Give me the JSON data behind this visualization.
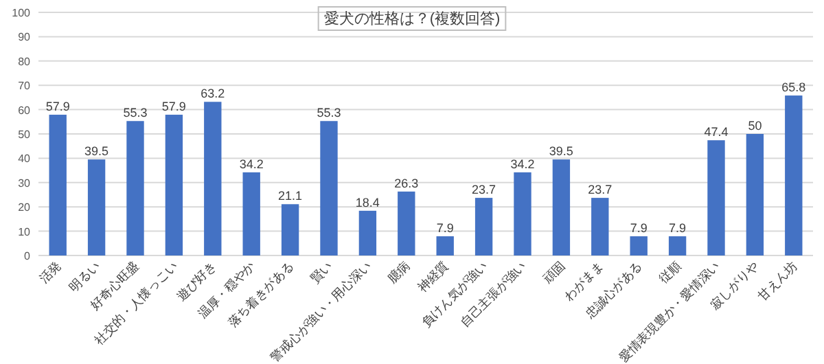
{
  "chart_data": {
    "type": "bar",
    "title": "愛犬の性格は？(複数回答)",
    "categories": [
      "活発",
      "明るい",
      "好奇心旺盛",
      "社交的・人懐っこい",
      "遊び好き",
      "温厚・穏やか",
      "落ち着きがある",
      "賢い",
      "警戒心が強い・用心深い",
      "臆病",
      "神経質",
      "負けん気が強い",
      "自己主張が強い",
      "頑固",
      "わがまま",
      "忠誠心がある",
      "従順",
      "愛情表現豊か・愛情深い",
      "寂しがりや",
      "甘えん坊"
    ],
    "values": [
      57.9,
      39.5,
      55.3,
      57.9,
      63.2,
      34.2,
      21.1,
      55.3,
      18.4,
      26.3,
      7.9,
      23.7,
      34.2,
      39.5,
      23.7,
      7.9,
      7.9,
      47.4,
      50,
      65.8
    ],
    "color": "#4472c4",
    "ylim": [
      0,
      100
    ],
    "yticks": [
      0,
      10,
      20,
      30,
      40,
      50,
      60,
      70,
      80,
      90,
      100
    ],
    "grid": "y",
    "data_labels": true
  }
}
